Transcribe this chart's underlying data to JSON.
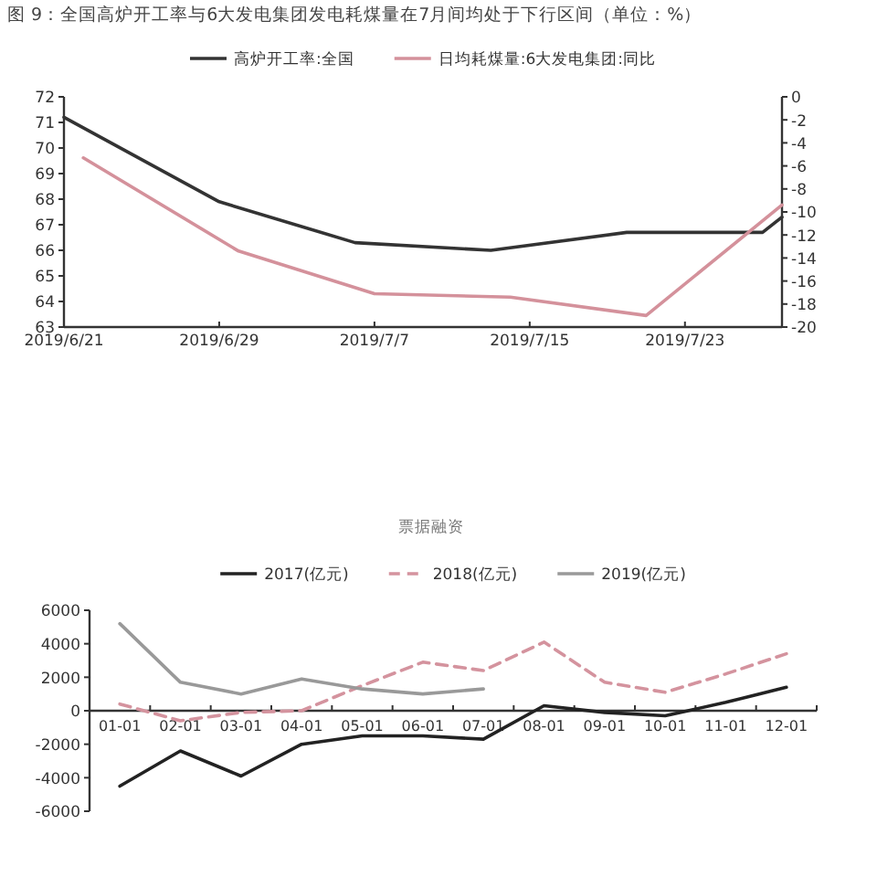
{
  "chart_data": [
    {
      "type": "line",
      "title": "图 9：全国高炉开工率与6大发电集团发电耗煤量在7月间均处于下行区间（单位：%）",
      "legend": "top",
      "xlim": [
        "2019-06-21",
        "2019-07-28"
      ],
      "xticks": [
        {
          "value": "2019-06-21",
          "label": "2019/6/21"
        },
        {
          "value": "2019-06-29",
          "label": "2019/6/29"
        },
        {
          "value": "2019-07-07",
          "label": "2019/7/7"
        },
        {
          "value": "2019-07-15",
          "label": "2019/7/15"
        },
        {
          "value": "2019-07-23",
          "label": "2019/7/23"
        }
      ],
      "ylim": [
        63,
        72
      ],
      "yticks": [
        63,
        64,
        65,
        66,
        67,
        68,
        69,
        70,
        71,
        72
      ],
      "y2lim": [
        -20,
        0
      ],
      "y2ticks": [
        -20,
        -18,
        -16,
        -14,
        -12,
        -10,
        -8,
        -6,
        -4,
        -2,
        0
      ],
      "series": [
        {
          "name": "高炉开工率:全国",
          "color": "#333333",
          "x": [
            "2019-06-21",
            "2019-06-29",
            "2019-07-06",
            "2019-07-13",
            "2019-07-20",
            "2019-07-27",
            "2019-07-28"
          ],
          "values": [
            71.2,
            67.9,
            66.3,
            66.0,
            66.7,
            66.7,
            67.3
          ]
        },
        {
          "name": "日均耗煤量:6大发电集团:同比",
          "color": "#d4919b",
          "axis": "y2",
          "x": [
            "2019-06-22",
            "2019-06-30",
            "2019-07-07",
            "2019-07-14",
            "2019-07-21",
            "2019-07-28"
          ],
          "values": [
            -5.3,
            -13.4,
            -17.1,
            -17.4,
            -19.0,
            -9.4
          ]
        }
      ]
    },
    {
      "type": "line",
      "title": "票据融资",
      "legend": "top",
      "categories": [
        "01-01",
        "02-01",
        "03-01",
        "04-01",
        "05-01",
        "06-01",
        "07-01",
        "08-01",
        "09-01",
        "10-01",
        "11-01",
        "12-01"
      ],
      "ylim": [
        -6000,
        6000
      ],
      "yticks": [
        -6000,
        -4000,
        -2000,
        0,
        2000,
        4000,
        6000
      ],
      "series": [
        {
          "name": "2017(亿元)",
          "color": "#222222",
          "values": [
            -4500,
            -2400,
            -3900,
            -2000,
            -1500,
            -1500,
            -1700,
            300,
            -100,
            -300,
            500,
            1400
          ]
        },
        {
          "name": "2018(亿元)",
          "color": "#d4939e",
          "line_style": "dashed",
          "values": [
            400,
            -600,
            -100,
            0,
            1500,
            2900,
            2400,
            4100,
            1700,
            1100,
            2200,
            3400
          ]
        },
        {
          "name": "2019(亿元)",
          "color": "#999999",
          "values": [
            5200,
            1700,
            1000,
            1900,
            1300,
            1000,
            1300,
            null,
            null,
            null,
            null,
            null
          ]
        }
      ]
    }
  ]
}
